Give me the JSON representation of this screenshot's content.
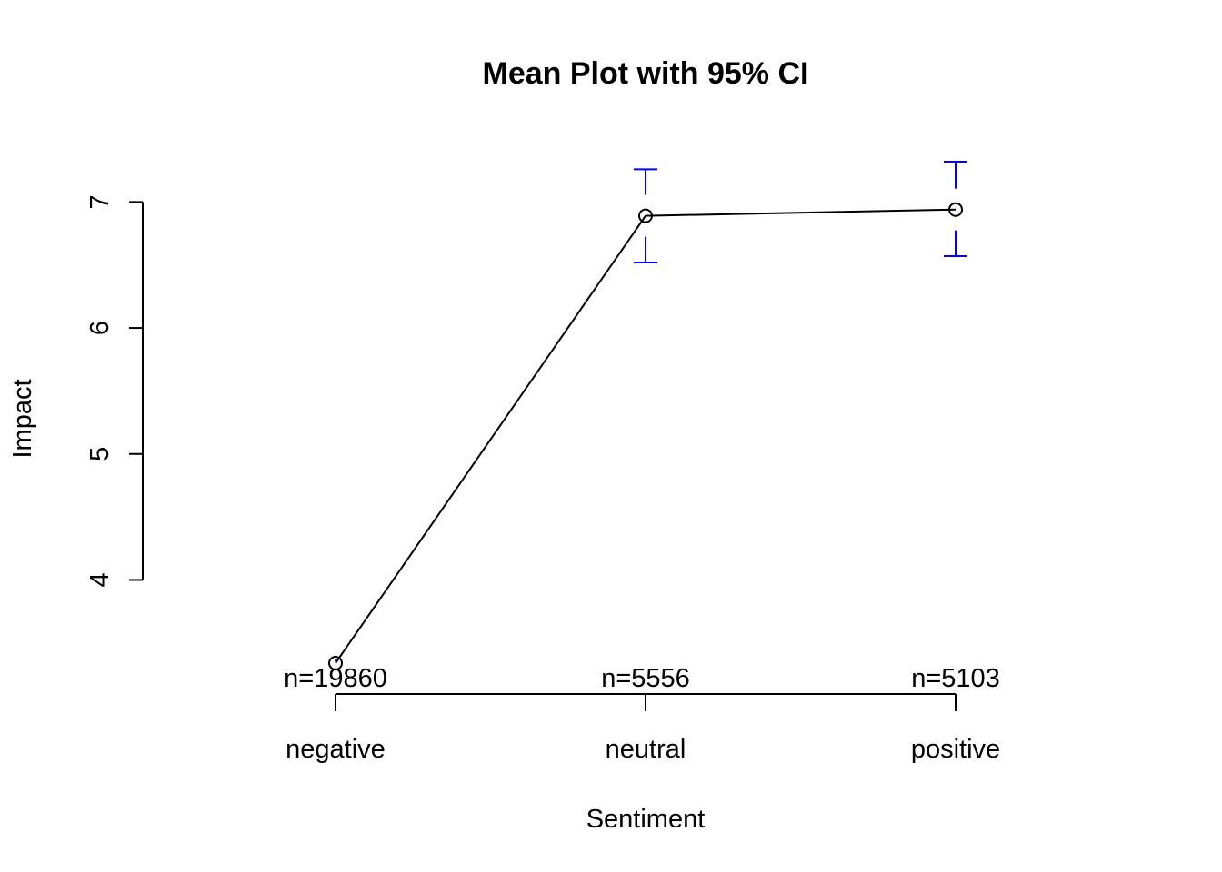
{
  "chart_data": {
    "type": "line",
    "title": "Mean Plot with 95% CI",
    "xlabel": "Sentiment",
    "ylabel": "Impact",
    "categories": [
      "negative",
      "neutral",
      "positive"
    ],
    "means": [
      3.34,
      6.89,
      6.94
    ],
    "ci_lower": [
      3.34,
      6.52,
      6.57
    ],
    "ci_upper": [
      3.36,
      7.26,
      7.32
    ],
    "n_labels": [
      "n=19860",
      "n=5556",
      "n=5103"
    ],
    "yticks": [
      4,
      5,
      6,
      7
    ],
    "ylim": [
      3.34,
      7.32
    ],
    "ci_color": "#0000FF",
    "line_color": "#000000",
    "grid": false,
    "legend": "none"
  }
}
